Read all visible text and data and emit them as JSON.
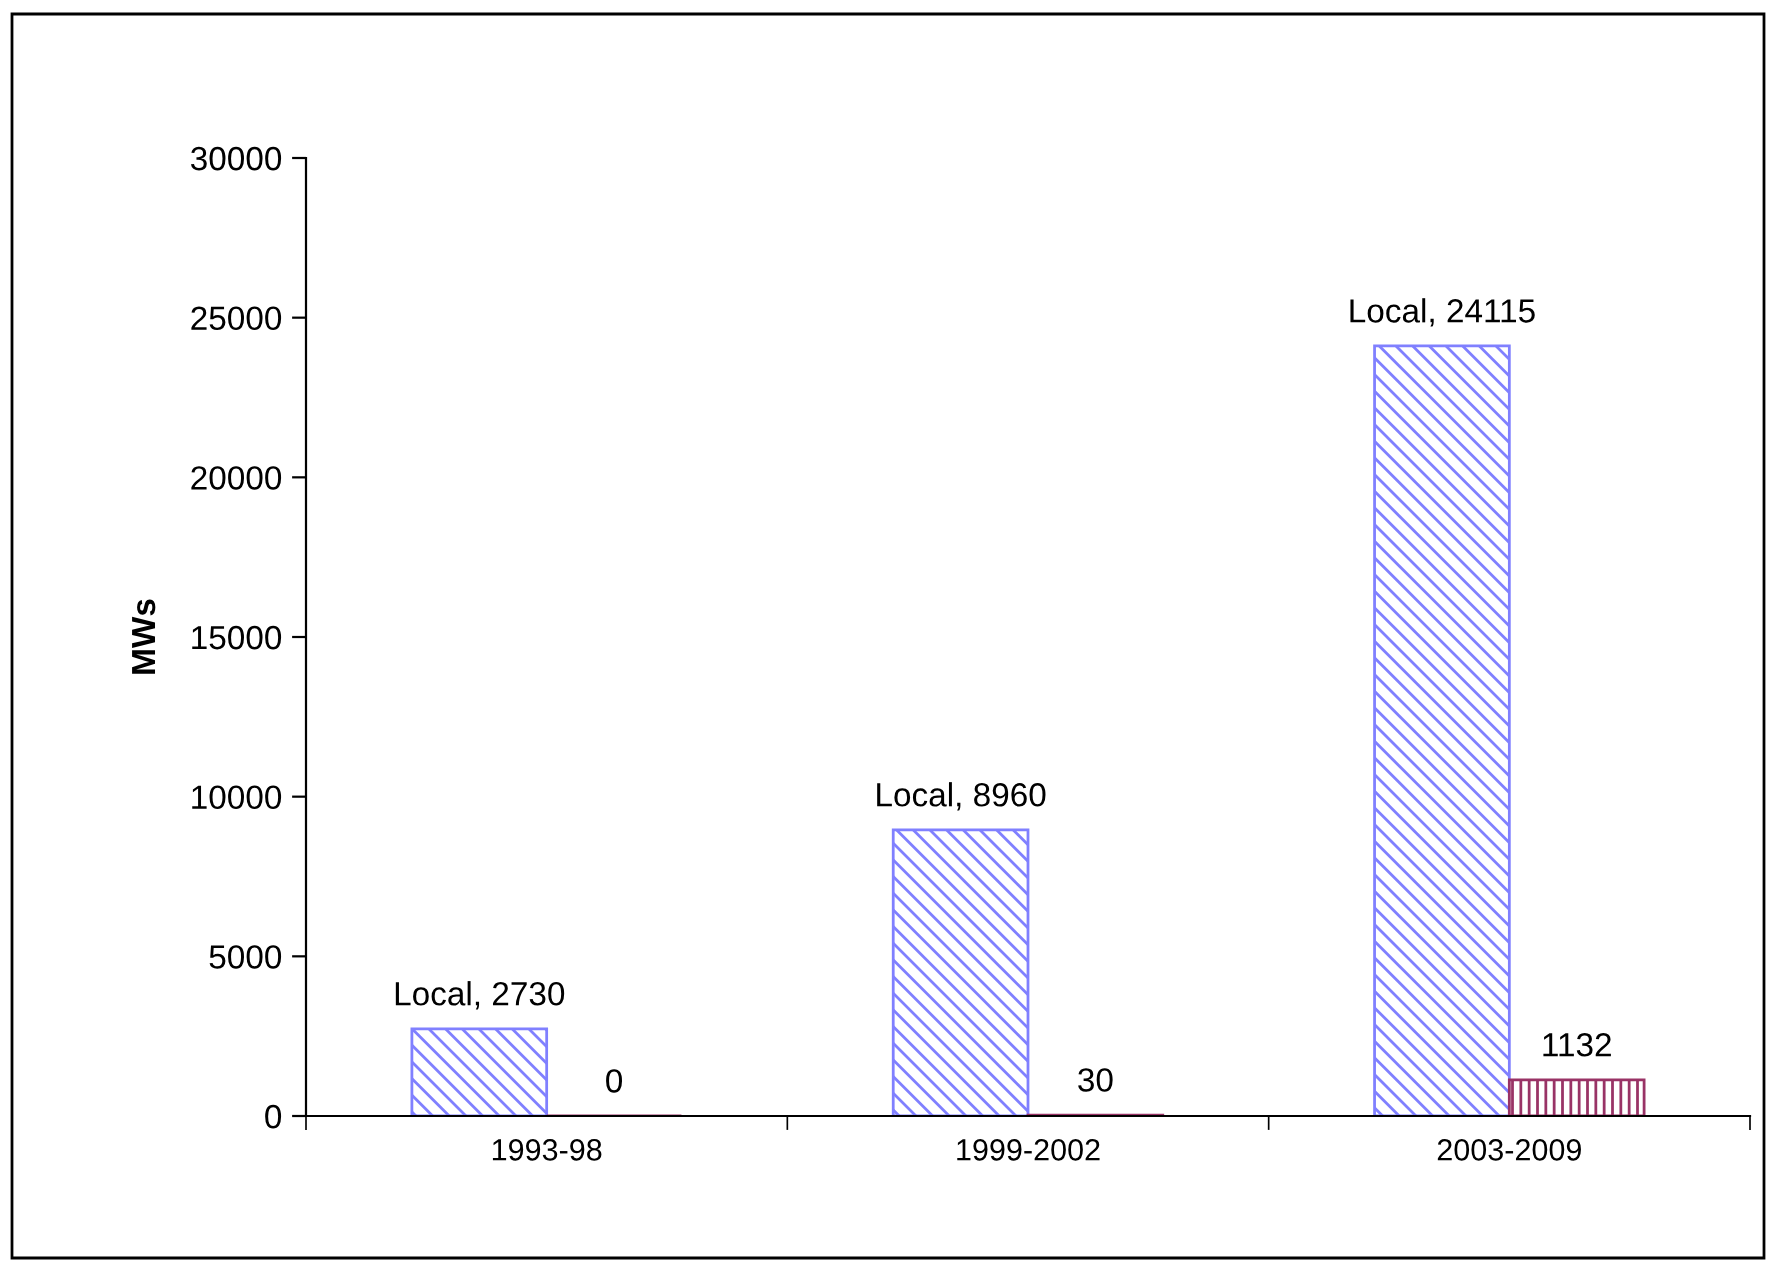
{
  "chart_data": {
    "type": "bar",
    "ylabel": "MWs",
    "categories": [
      "1993-98",
      "1999-2002",
      "2003-2009"
    ],
    "series": [
      {
        "name": "Local",
        "color": "#8080ff",
        "values": [
          2730,
          8960,
          24115
        ]
      },
      {
        "color": "#993366",
        "values": [
          0,
          30,
          1132
        ]
      }
    ],
    "data_labels": true,
    "annotations": [
      ","
    ],
    "ylim": [
      0,
      30000
    ],
    "yticks": [
      0,
      5000,
      10000,
      15000,
      20000,
      25000,
      30000
    ],
    "grid": false,
    "legend": false
  }
}
